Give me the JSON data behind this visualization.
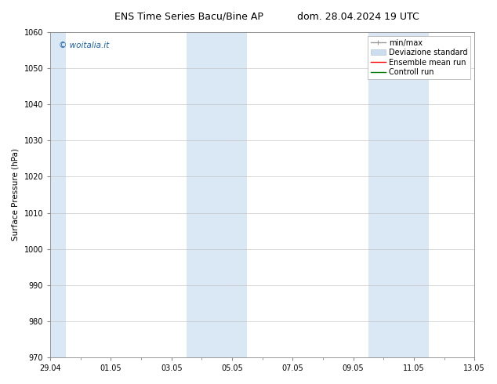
{
  "title_left": "ENS Time Series Bacu/Bine AP",
  "title_right": "dom. 28.04.2024 19 UTC",
  "ylabel": "Surface Pressure (hPa)",
  "ylim": [
    970,
    1060
  ],
  "yticks": [
    970,
    980,
    990,
    1000,
    1010,
    1020,
    1030,
    1040,
    1050,
    1060
  ],
  "xtick_labels": [
    "29.04",
    "01.05",
    "03.05",
    "05.05",
    "07.05",
    "09.05",
    "11.05",
    "13.05"
  ],
  "xtick_positions": [
    0,
    2,
    4,
    6,
    8,
    10,
    12,
    14
  ],
  "xlim": [
    0,
    14
  ],
  "shaded_regions": [
    {
      "x_start": 0.0,
      "x_end": 0.5,
      "color": "#dae8f5"
    },
    {
      "x_start": 4.5,
      "x_end": 6.5,
      "color": "#dae8f5"
    },
    {
      "x_start": 10.5,
      "x_end": 12.5,
      "color": "#dae8f5"
    }
  ],
  "background_color": "#ffffff",
  "plot_bg_color": "#ffffff",
  "watermark_text": "© woitalia.it",
  "watermark_color": "#1a5fa8",
  "font_size_title": 9,
  "font_size_tick": 7,
  "font_size_legend": 7,
  "font_size_ylabel": 7.5,
  "font_family": "DejaVu Sans",
  "grid_color": "#bbbbbb",
  "grid_lw": 0.4,
  "legend_gray": "#999999",
  "legend_lightblue": "#ccddf0",
  "legend_red": "#ff0000",
  "legend_green": "#008000"
}
